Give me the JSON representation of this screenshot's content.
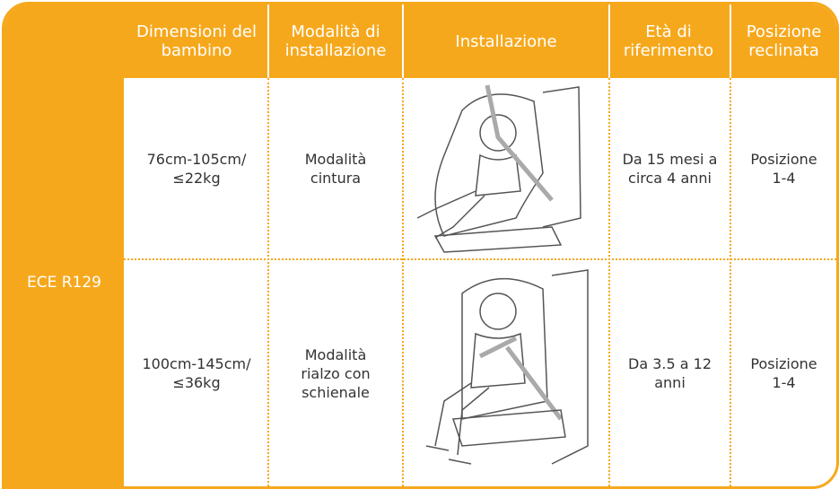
{
  "table": {
    "row_header": "ECE R129",
    "columns": [
      "Dimensioni del bambino",
      "Modalità di installazione",
      "Installazione",
      "Età di riferimento",
      "Posizione reclinata"
    ],
    "rows": [
      {
        "size": "76cm-105cm/ ≤22kg",
        "mode": "Modalità cintura",
        "age": "Da 15 mesi a circa 4 anni",
        "recline": "Posizione 1-4"
      },
      {
        "size": "100cm-145cm/ ≤36kg",
        "mode": "Modalità rialzo con schienale",
        "age": "Da 3.5 a 12 anni",
        "recline": "Posizione 1-4"
      }
    ]
  }
}
